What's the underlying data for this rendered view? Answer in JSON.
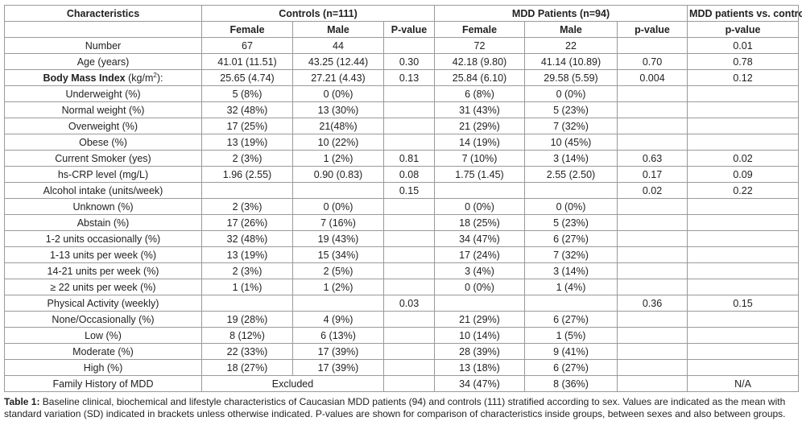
{
  "header": {
    "characteristics": "Characteristics",
    "controls_group": "Controls (n=111)",
    "mdd_group": "MDD Patients (n=94)",
    "compare_group": "MDD patients vs. controls",
    "sub": {
      "female1": "Female",
      "male1": "Male",
      "pvalue1": "P-value",
      "female2": "Female",
      "male2": "Male",
      "pvalue2": "p-value",
      "pvalue3": "p-value"
    }
  },
  "rows": [
    {
      "label": "Number",
      "bold": true,
      "cells": [
        "67",
        "44",
        "",
        "72",
        "22",
        "",
        "0.01"
      ]
    },
    {
      "label": "Age (years)",
      "bold": true,
      "cells": [
        "41.01 (11.51)",
        "43.25 (12.44)",
        "0.30",
        "42.18 (9.80)",
        "41.14 (10.89)",
        "0.70",
        "0.78"
      ]
    },
    {
      "label": "Body Mass Index",
      "label_suffix": " (kg/m",
      "label_sup": "2",
      "label_end": "):",
      "bold": true,
      "cells": [
        "25.65 (4.74)",
        "27.21 (4.43)",
        "0.13",
        "25.84 (6.10)",
        "29.58 (5.59)",
        "0.004",
        "0.12"
      ]
    },
    {
      "label": "Underweight (%)",
      "bold": false,
      "cells": [
        "5 (8%)",
        "0 (0%)",
        "",
        "6 (8%)",
        "0 (0%)",
        "",
        ""
      ]
    },
    {
      "label": "Normal weight (%)",
      "bold": false,
      "cells": [
        "32 (48%)",
        "13 (30%)",
        "",
        "31 (43%)",
        "5 (23%)",
        "",
        ""
      ]
    },
    {
      "label": "Overweight (%)",
      "bold": false,
      "cells": [
        "17 (25%)",
        "21(48%)",
        "",
        "21 (29%)",
        "7 (32%)",
        "",
        ""
      ]
    },
    {
      "label": "Obese (%)",
      "bold": false,
      "cells": [
        "13 (19%)",
        "10 (22%)",
        "",
        "14 (19%)",
        "10 (45%)",
        "",
        ""
      ]
    },
    {
      "label": "Current Smoker (yes)",
      "bold": true,
      "cells": [
        "2 (3%)",
        "1 (2%)",
        "0.81",
        "7 (10%)",
        "3 (14%)",
        "0.63",
        "0.02"
      ]
    },
    {
      "label": "hs-CRP level (mg/L)",
      "bold": true,
      "cells": [
        "1.96 (2.55)",
        "0.90 (0.83)",
        "0.08",
        "1.75 (1.45)",
        "2.55 (2.50)",
        "0.17",
        "0.09"
      ]
    },
    {
      "label": "Alcohol intake (units/week)",
      "bold": true,
      "cells": [
        "",
        "",
        "0.15",
        "",
        "",
        "0.02",
        "0.22"
      ]
    },
    {
      "label": "Unknown (%)",
      "bold": false,
      "cells": [
        "2 (3%)",
        "0 (0%)",
        "",
        "0 (0%)",
        "0 (0%)",
        "",
        ""
      ]
    },
    {
      "label": "Abstain (%)",
      "bold": false,
      "cells": [
        "17 (26%)",
        "7 (16%)",
        "",
        "18 (25%)",
        "5 (23%)",
        "",
        ""
      ]
    },
    {
      "label": "1-2 units occasionally (%)",
      "bold": false,
      "cells": [
        "32 (48%)",
        "19 (43%)",
        "",
        "34 (47%)",
        "6 (27%)",
        "",
        ""
      ]
    },
    {
      "label": "1-13 units per week (%)",
      "bold": false,
      "cells": [
        "13 (19%)",
        "15 (34%)",
        "",
        "17 (24%)",
        "7 (32%)",
        "",
        ""
      ]
    },
    {
      "label": "14-21 units per week (%)",
      "bold": false,
      "cells": [
        "2 (3%)",
        "2 (5%)",
        "",
        "3 (4%)",
        "3 (14%)",
        "",
        ""
      ]
    },
    {
      "label": "≥ 22 units per week (%)",
      "bold": false,
      "cells": [
        "1 (1%)",
        "1 (2%)",
        "",
        "0 (0%)",
        "1 (4%)",
        "",
        ""
      ]
    },
    {
      "label": "Physical Activity (weekly)",
      "bold": true,
      "cells": [
        "",
        "",
        "0.03",
        "",
        "",
        "0.36",
        "0.15"
      ]
    },
    {
      "label": "None/Occasionally (%)",
      "bold": false,
      "cells": [
        "19 (28%)",
        "4 (9%)",
        "",
        "21 (29%)",
        "6 (27%)",
        "",
        ""
      ]
    },
    {
      "label": "Low (%)",
      "bold": false,
      "cells": [
        "8 (12%)",
        "6 (13%)",
        "",
        "10 (14%)",
        "1 (5%)",
        "",
        ""
      ]
    },
    {
      "label": "Moderate (%)",
      "bold": false,
      "cells": [
        "22 (33%)",
        "17 (39%)",
        "",
        "28 (39%)",
        "9 (41%)",
        "",
        ""
      ]
    },
    {
      "label": "High (%)",
      "bold": false,
      "cells": [
        "18 (27%)",
        "17 (39%)",
        "",
        "13 (18%)",
        "6 (27%)",
        "",
        ""
      ]
    }
  ],
  "family_history": {
    "label": "Family History of MDD",
    "controls": "Excluded",
    "mdd_female": "34 (47%)",
    "mdd_male": "8 (36%)",
    "compare": "N/A"
  },
  "caption": {
    "label": "Table 1:",
    "text": " Baseline clinical, biochemical and lifestyle characteristics of Caucasian MDD patients (94) and controls (111) stratified according to sex. Values are indicated as the mean with standard variation (SD) indicated in brackets unless otherwise indicated. P-values are shown for comparison of characteristics inside groups, between sexes and also between groups."
  }
}
